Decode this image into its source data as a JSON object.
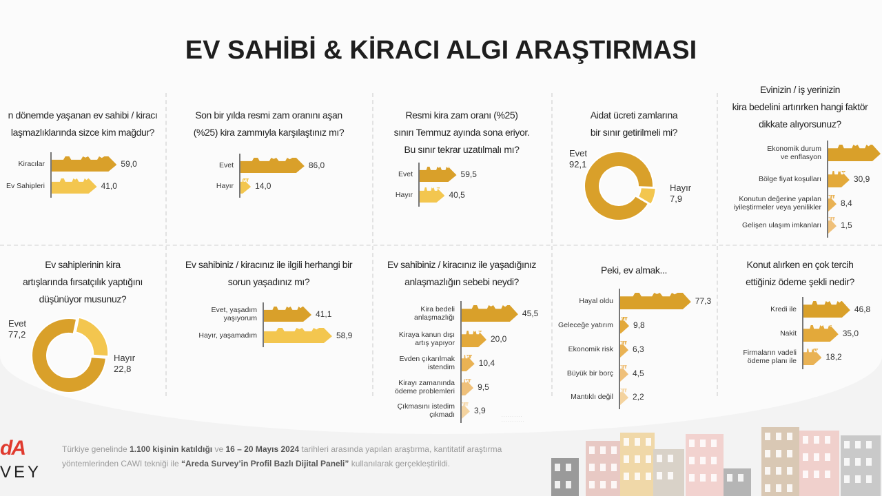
{
  "title": "EV SAHİBİ & KİRACI ALGI ARAŞTIRMASI",
  "colors": {
    "dark": "#d9a02a",
    "mid": "#e5ad3c",
    "light": "#f3c64f",
    "shades": [
      "#d9a02a",
      "#e3a93a",
      "#e9b254",
      "#efc07a",
      "#f4d39f"
    ]
  },
  "chart_data": [
    {
      "id": "p1",
      "type": "bar",
      "title": [
        "n dönemde yaşanan ev sahibi / kiracı",
        "laşmazlıklarında sizce kim mağdur?"
      ],
      "categories": [
        "Kiracılar",
        "Ev Sahipleri"
      ],
      "values": [
        59.0,
        41.0
      ],
      "value_labels": [
        "59,0",
        "41,0"
      ]
    },
    {
      "id": "p2",
      "type": "bar",
      "title": [
        "Son bir yılda resmi zam oranını aşan",
        "(%25) kira zammıyla karşılaştınız mı?"
      ],
      "categories": [
        "Evet",
        "Hayır"
      ],
      "values": [
        86.0,
        14.0
      ],
      "value_labels": [
        "86,0",
        "14,0"
      ]
    },
    {
      "id": "p3",
      "type": "bar",
      "title": [
        "Resmi kira zam oranı (%25)",
        "sınırı Temmuz ayında sona eriyor.",
        "Bu sınır tekrar uzatılmalı mı?"
      ],
      "categories": [
        "Evet",
        "Hayır"
      ],
      "values": [
        59.5,
        40.5
      ],
      "value_labels": [
        "59,5",
        "40,5"
      ]
    },
    {
      "id": "p4",
      "type": "pie",
      "title": [
        "Aidat ücreti zamlarına",
        "bir sınır getirilmeli mi?"
      ],
      "categories": [
        "Evet",
        "Hayır"
      ],
      "values": [
        92.1,
        7.9
      ],
      "value_labels": [
        "92,1",
        "7,9"
      ]
    },
    {
      "id": "p5",
      "type": "bar",
      "title": [
        "Evinizin / iş yerinizin",
        "kira bedelini artırırken hangi faktör",
        "dikkate alıyorsunuz?"
      ],
      "categories": [
        "Ekonomik durum\nve enflasyon",
        "Bölge fiyat koşulları",
        "Konutun değerine yapılan\niyileştirmeler veya yenilikler",
        "Gelişen ulaşım imkanları"
      ],
      "values": [
        null,
        30.9,
        8.4,
        1.5
      ],
      "value_labels": [
        "",
        "30,9",
        "8,4",
        "1,5"
      ]
    },
    {
      "id": "p6",
      "type": "pie",
      "title": [
        "Ev sahiplerinin kira",
        "artışlarında fırsatçılık yaptığını",
        "düşünüyor musunuz?"
      ],
      "categories": [
        "Evet",
        "Hayır"
      ],
      "values": [
        77.2,
        22.8
      ],
      "value_labels": [
        "77,2",
        "22,8"
      ]
    },
    {
      "id": "p7",
      "type": "bar",
      "title": [
        "Ev sahibiniz / kiracınız ile ilgili herhangi bir",
        "sorun yaşadınız mı?"
      ],
      "categories": [
        "Evet, yaşadım\nyaşıyorum",
        "Hayır, yaşamadım"
      ],
      "values": [
        41.1,
        58.9
      ],
      "value_labels": [
        "41,1",
        "58,9"
      ]
    },
    {
      "id": "p8",
      "type": "bar",
      "title": [
        "Ev sahibiniz / kiracınız ile yaşadığınız",
        "anlaşmazlığın sebebi neydi?"
      ],
      "categories": [
        "Kira bedeli\nanlaşmazlığı",
        "Kiraya kanun dışı\nartış yapıyor",
        "Evden çıkarılmak\nistendim",
        "Kirayı zamanında\nödeme problemleri",
        "Çıkmasını istedim\nçıkmadı"
      ],
      "values": [
        45.5,
        20.0,
        10.4,
        9.5,
        3.9
      ],
      "value_labels": [
        "45,5",
        "20,0",
        "10,4",
        "9,5",
        "3,9"
      ]
    },
    {
      "id": "p9",
      "type": "bar",
      "title": [
        "Peki, ev almak..."
      ],
      "categories": [
        "Hayal oldu",
        "Geleceğe yatırım",
        "Ekonomik risk",
        "Büyük bir borç",
        "Mantıklı değil"
      ],
      "values": [
        77.3,
        9.8,
        6.3,
        4.5,
        2.2
      ],
      "value_labels": [
        "77,3",
        "9,8",
        "6,3",
        "4,5",
        "2,2"
      ]
    },
    {
      "id": "p10",
      "type": "bar",
      "title": [
        "Konut alırken en çok tercih",
        "ettiğiniz ödeme şekli nedir?"
      ],
      "categories": [
        "Kredi ile",
        "Nakit",
        "Firmaların vadeli\nödeme planı ile"
      ],
      "values": [
        46.8,
        35.0,
        18.2
      ],
      "value_labels": [
        "46,8",
        "35,0",
        "18,2"
      ]
    }
  ],
  "footer": {
    "t1": "Türkiye genelinde ",
    "b1": "1.100 kişinin katıldığı",
    "t2": " ve ",
    "b2": "16 – 20 Mayıs 2024",
    "t3": " tarihleri arasında yapılan araştırma, kantitatif araştırma",
    "t4": "yöntemlerinden CAWI tekniği ile ",
    "b3": "“Areda Survey’in Profil Bazlı Dijital Paneli”",
    "t5": " kullanılarak gerçekleştirildi."
  },
  "logo": {
    "top": "dA",
    "bottom": "VEY"
  }
}
